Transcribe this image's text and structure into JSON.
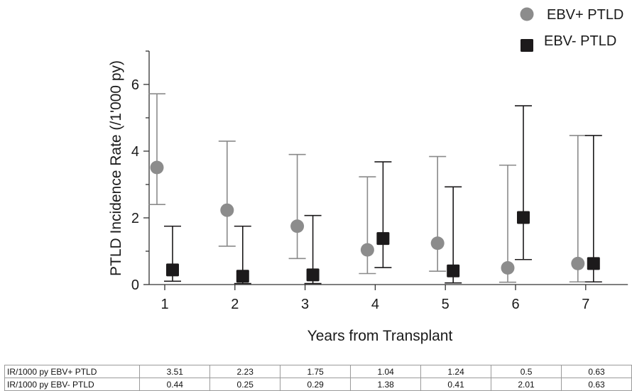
{
  "chart_data": {
    "type": "scatter",
    "xlabel": "Years from Transplant",
    "ylabel": "PTLD Incidence Rate (/1'000 py)",
    "x": [
      1,
      2,
      3,
      4,
      5,
      6,
      7
    ],
    "xlim": [
      0.5,
      7.5
    ],
    "ylim": [
      0,
      7
    ],
    "yticks": [
      0,
      2,
      4,
      6
    ],
    "legend_position": "top-right",
    "series": [
      {
        "name": "EBV+ PTLD",
        "marker": "circle",
        "color": "#8c8c8c",
        "values": [
          3.51,
          2.23,
          1.75,
          1.04,
          1.24,
          0.5,
          0.63
        ],
        "lower": [
          2.4,
          1.15,
          0.78,
          0.33,
          0.4,
          0.07,
          0.08
        ],
        "upper": [
          5.72,
          4.3,
          3.9,
          3.23,
          3.84,
          3.58,
          4.47
        ]
      },
      {
        "name": "EBV- PTLD",
        "marker": "square",
        "color": "#1c1a1b",
        "values": [
          0.44,
          0.25,
          0.29,
          1.38,
          0.41,
          2.01,
          0.63
        ],
        "lower": [
          0.1,
          0.03,
          0.03,
          0.51,
          0.05,
          0.75,
          0.08
        ],
        "upper": [
          1.75,
          1.75,
          2.07,
          3.68,
          2.93,
          5.36,
          4.47
        ]
      }
    ]
  },
  "table": {
    "rows": [
      {
        "label": "IR/1000 py EBV+ PTLD",
        "values": [
          "3.51",
          "2.23",
          "1.75",
          "1.04",
          "1.24",
          "0.5",
          "0.63"
        ]
      },
      {
        "label": "IR/1000 py EBV- PTLD",
        "values": [
          "0.44",
          "0.25",
          "0.29",
          "1.38",
          "0.41",
          "2.01",
          "0.63"
        ]
      }
    ]
  }
}
